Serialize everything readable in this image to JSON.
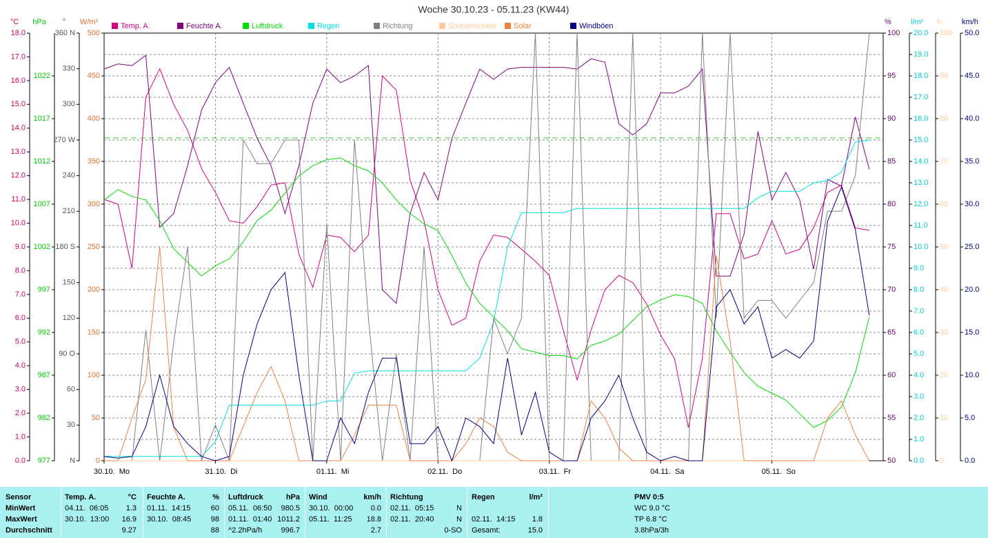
{
  "chart_data": {
    "type": "multi-axis-line",
    "title": "Woche 30.10.23 - 05.11.23 (KW44)",
    "categories": [
      "30.10.  Mo",
      null,
      null,
      null,
      null,
      null,
      null,
      null,
      "31.10.  Di",
      null,
      null,
      null,
      null,
      null,
      null,
      null,
      "01.11.  Mi",
      null,
      null,
      null,
      null,
      null,
      null,
      null,
      "02.11.  Do",
      null,
      null,
      null,
      null,
      null,
      null,
      null,
      "03.11.  Fr",
      null,
      null,
      null,
      null,
      null,
      null,
      null,
      "04.11.  Sa",
      null,
      null,
      null,
      null,
      null,
      null,
      null,
      "05.11.  So",
      null,
      null,
      null,
      null,
      null,
      null,
      null
    ],
    "grid": true,
    "axes": [
      {
        "unit": "°C",
        "side": "left",
        "color": "#cc0066",
        "ylim": [
          0,
          18
        ],
        "yticks": [
          {
            "value": 0,
            "label": "0.0"
          },
          {
            "value": 1,
            "label": "1.0"
          },
          {
            "value": 2,
            "label": "2.0"
          },
          {
            "value": 3,
            "label": "3.0"
          },
          {
            "value": 4,
            "label": "4.0"
          },
          {
            "value": 5,
            "label": "5.0"
          },
          {
            "value": 6,
            "label": "6.0"
          },
          {
            "value": 7,
            "label": "7.0"
          },
          {
            "value": 8,
            "label": "8.0"
          },
          {
            "value": 9,
            "label": "9.0"
          },
          {
            "value": 10,
            "label": "10.0"
          },
          {
            "value": 11,
            "label": "11.0"
          },
          {
            "value": 12,
            "label": "12.0"
          },
          {
            "value": 13,
            "label": "13.0"
          },
          {
            "value": 14,
            "label": "14.0"
          },
          {
            "value": 15,
            "label": "15.0"
          },
          {
            "value": 16,
            "label": "16.0"
          },
          {
            "value": 17,
            "label": "17.0"
          },
          {
            "value": 18,
            "label": "18.0"
          }
        ]
      },
      {
        "unit": "hPa",
        "side": "left",
        "color": "#00cc00",
        "ylim": [
          977,
          1027
        ],
        "yticks": [
          977,
          982,
          987,
          992,
          997,
          1002,
          1007,
          1012,
          1017,
          1022
        ]
      },
      {
        "unit": "°",
        "side": "left",
        "color": "#555555",
        "ylim": [
          0,
          360
        ],
        "yticks": [
          {
            "value": 0,
            "label": "N"
          },
          30,
          60,
          {
            "value": 90,
            "label": "90 O"
          },
          120,
          150,
          {
            "value": 180,
            "label": "180 S"
          },
          210,
          240,
          {
            "value": 270,
            "label": "270 W"
          },
          300,
          330,
          {
            "value": 360,
            "label": "360 N"
          }
        ]
      },
      {
        "unit": "W/m²",
        "side": "left",
        "color": "#e07030",
        "ylim": [
          0,
          500
        ],
        "yticks": [
          0,
          50,
          100,
          150,
          200,
          250,
          300,
          350,
          400,
          450,
          500
        ]
      },
      {
        "unit": "%",
        "side": "right",
        "color": "#660066",
        "ylim": [
          50,
          100
        ],
        "yticks": [
          50,
          55,
          60,
          65,
          70,
          75,
          80,
          85,
          90,
          95,
          100
        ]
      },
      {
        "unit": "l/m²",
        "side": "right",
        "color": "#00cccc",
        "grid": true,
        "ylim": [
          0,
          20
        ],
        "yticks": [
          {
            "value": 0,
            "label": "0.0"
          },
          {
            "value": 1,
            "label": "1.0"
          },
          {
            "value": 2,
            "label": "2.0"
          },
          {
            "value": 3,
            "label": "3.0"
          },
          {
            "value": 4,
            "label": "4.0"
          },
          {
            "value": 5,
            "label": "5.0"
          },
          {
            "value": 6,
            "label": "6.0"
          },
          {
            "value": 7,
            "label": "7.0"
          },
          {
            "value": 8,
            "label": "8.0"
          },
          {
            "value": 9,
            "label": "9.0"
          },
          {
            "value": 10,
            "label": "10.0"
          },
          {
            "value": 11,
            "label": "11.0"
          },
          {
            "value": 12,
            "label": "12.0"
          },
          {
            "value": 13,
            "label": "13.0"
          },
          {
            "value": 14,
            "label": "14.0"
          },
          {
            "value": 15,
            "label": "15.0"
          },
          {
            "value": 16,
            "label": "16.0"
          },
          {
            "value": 17,
            "label": "17.0"
          },
          {
            "value": 18,
            "label": "18.0"
          },
          {
            "value": 19,
            "label": "19.0"
          },
          {
            "value": 20,
            "label": "20.0"
          }
        ]
      },
      {
        "unit": "h",
        "side": "right",
        "color": "#ffcc99",
        "ylim": [
          0,
          100
        ],
        "yticks": [
          0,
          10,
          20,
          30,
          40,
          50,
          60,
          70,
          80,
          90,
          100
        ]
      },
      {
        "unit": "km/h",
        "side": "right",
        "color": "#000080",
        "ylim": [
          0,
          50
        ],
        "yticks": [
          {
            "value": 0,
            "label": "0.0"
          },
          {
            "value": 5,
            "label": "5.0"
          },
          {
            "value": 10,
            "label": "10.0"
          },
          {
            "value": 15,
            "label": "15.0"
          },
          {
            "value": 20,
            "label": "20.0"
          },
          {
            "value": 25,
            "label": "25.0"
          },
          {
            "value": 30,
            "label": "30.0"
          },
          {
            "value": 35,
            "label": "35.0"
          },
          {
            "value": 40,
            "label": "40.0"
          },
          {
            "value": 45,
            "label": "45.0"
          },
          {
            "value": 50,
            "label": "50.0"
          }
        ]
      }
    ],
    "series": [
      {
        "name": "Temp. A.",
        "color": "#d0007f",
        "axis": 0,
        "values": [
          11.0,
          10.8,
          8.1,
          15.3,
          16.5,
          15.0,
          13.9,
          12.3,
          11.3,
          10.1,
          10.0,
          10.7,
          11.6,
          11.7,
          8.7,
          7.3,
          9.5,
          9.4,
          8.8,
          9.5,
          16.2,
          15.6,
          11.8,
          10.1,
          7.2,
          5.7,
          6.0,
          8.4,
          9.5,
          9.4,
          8.9,
          8.4,
          7.8,
          5.5,
          3.4,
          5.5,
          7.2,
          7.8,
          7.5,
          6.6,
          5.3,
          4.3,
          1.4,
          4.3,
          10.4,
          10.4,
          8.5,
          8.7,
          10.1,
          8.7,
          8.9,
          9.8,
          11.3,
          11.6,
          9.8,
          9.7
        ]
      },
      {
        "name": "Feuchte A.",
        "color": "#800080",
        "axis": 4,
        "values": [
          95.8,
          96.4,
          96.2,
          97.4,
          77.3,
          78.9,
          84.5,
          91.0,
          94.2,
          96.0,
          91.8,
          87.7,
          84.5,
          78.9,
          84.5,
          91.8,
          95.8,
          94.2,
          95.0,
          96.2,
          70.0,
          68.4,
          78.9,
          83.7,
          80.5,
          87.7,
          91.8,
          95.8,
          94.6,
          95.8,
          96.0,
          96.0,
          96.0,
          96.0,
          95.8,
          97.0,
          96.6,
          89.4,
          88.1,
          89.4,
          93.0,
          93.0,
          93.8,
          95.8,
          71.6,
          71.6,
          76.5,
          88.5,
          80.5,
          83.7,
          80.5,
          72.4,
          82.9,
          82.1,
          90.2,
          84.1
        ]
      },
      {
        "name": "Luftdruck",
        "color": "#00dd00",
        "axis": 1,
        "values": [
          1007.5,
          1008.7,
          1007.9,
          1007.5,
          1005.1,
          1001.8,
          1000.2,
          998.6,
          999.8,
          1000.6,
          1002.6,
          1005.1,
          1006.3,
          1008.3,
          1010.3,
          1011.5,
          1012.2,
          1012.4,
          1011.5,
          1010.9,
          1009.5,
          1007.5,
          1005.9,
          1004.7,
          1003.9,
          1001.0,
          997.8,
          995.4,
          993.8,
          992.2,
          990.1,
          989.7,
          989.3,
          989.3,
          988.9,
          990.5,
          991.0,
          991.8,
          993.4,
          995.0,
          995.8,
          996.4,
          996.2,
          995.4,
          992.2,
          989.7,
          987.3,
          985.7,
          984.9,
          984.1,
          982.5,
          980.9,
          981.7,
          983.3,
          987.3,
          993.8
        ]
      },
      {
        "name": "Regen",
        "color": "#00e0e0",
        "axis": 5,
        "values": [
          0.2,
          0.2,
          0.2,
          0.2,
          0.2,
          0.2,
          0.2,
          0.2,
          0.9,
          2.6,
          2.6,
          2.6,
          2.6,
          2.6,
          2.6,
          2.6,
          2.8,
          2.8,
          4.1,
          4.2,
          4.2,
          4.2,
          4.2,
          4.2,
          4.2,
          4.2,
          4.2,
          4.8,
          6.5,
          10.0,
          11.6,
          11.6,
          11.6,
          11.6,
          11.8,
          11.8,
          11.8,
          11.8,
          11.8,
          11.8,
          11.8,
          11.8,
          11.8,
          11.8,
          11.8,
          11.8,
          11.8,
          12.3,
          12.6,
          12.6,
          12.6,
          13.0,
          13.1,
          13.5,
          14.9,
          15.0
        ]
      },
      {
        "name": "Richtung",
        "color": "#808080",
        "axis": 2,
        "values": [
          0,
          0,
          0,
          110,
          0,
          100,
          180,
          0,
          30,
          0,
          270,
          250,
          250,
          270,
          270,
          0,
          200,
          0,
          270,
          120,
          0,
          90,
          0,
          180,
          0,
          0,
          0,
          0,
          120,
          90,
          120,
          360,
          0,
          0,
          360,
          0,
          0,
          0,
          360,
          0,
          0,
          0,
          0,
          360,
          120,
          360,
          120,
          135,
          135,
          120,
          135,
          150,
          210,
          210,
          240,
          360
        ]
      },
      {
        "name": "Sonnenschein",
        "color": "#ffcc99",
        "axis": 6,
        "values": [
          0,
          0,
          0,
          0,
          0,
          0,
          0,
          0,
          0,
          0,
          0,
          0,
          0,
          0,
          0,
          0,
          0,
          0,
          0,
          0,
          0,
          0,
          0,
          0,
          0,
          0,
          0,
          0,
          0,
          0,
          0,
          0,
          0,
          0,
          0,
          0,
          0,
          0,
          0,
          0,
          0,
          0,
          0,
          0,
          0,
          0,
          0,
          0,
          0,
          0,
          0,
          0,
          0,
          0,
          0,
          0
        ]
      },
      {
        "name": "Solar",
        "color": "#f08040",
        "axis": 3,
        "values": [
          0,
          0,
          50,
          95,
          250,
          39,
          0,
          0,
          0,
          0,
          40,
          80,
          110,
          70,
          0,
          0,
          0,
          0,
          30,
          65,
          65,
          65,
          0,
          0,
          0,
          0,
          20,
          50,
          40,
          10,
          0,
          0,
          0,
          0,
          0,
          70,
          50,
          15,
          0,
          0,
          0,
          0,
          0,
          0,
          240,
          140,
          0,
          0,
          0,
          0,
          0,
          0,
          50,
          70,
          30,
          0
        ]
      },
      {
        "name": "Windböen",
        "color": "#000080",
        "axis": 7,
        "values": [
          0.5,
          0.3,
          0.5,
          4,
          10,
          4,
          2,
          0.5,
          0,
          0.5,
          10,
          16,
          20,
          22,
          10,
          0,
          0,
          5,
          2,
          8,
          12,
          12,
          2,
          2,
          4,
          0,
          5,
          4,
          2,
          12,
          3,
          8,
          1,
          0,
          0,
          5,
          7,
          10,
          5,
          1,
          0,
          0.5,
          0,
          0,
          18,
          20,
          16,
          18,
          12,
          13,
          12,
          14,
          28,
          32,
          27,
          17
        ]
      }
    ]
  },
  "table": {
    "row_labels_title": "Sensor",
    "row_labels": [
      "MinWert",
      "MaxWert",
      "Durchschnitt"
    ],
    "groups": [
      {
        "title": "Temp. A.",
        "unit": "°C",
        "rows": [
          [
            "04.11.  06:05",
            "1.3"
          ],
          [
            "30.10.  13:00",
            "16.9"
          ],
          [
            null,
            "9.27"
          ]
        ]
      },
      {
        "title": "Feuchte A.",
        "unit": "%",
        "rows": [
          [
            "01.11.  14:15",
            "60"
          ],
          [
            "30.10.  08:45",
            "98"
          ],
          [
            null,
            "88"
          ]
        ]
      },
      {
        "title": "Luftdruck",
        "unit": "hPa",
        "rows": [
          [
            "05.11.  06:50",
            "980.5"
          ],
          [
            "01.11.  01:40",
            "1011.2"
          ],
          [
            "^2.2hPa/h",
            "996.7"
          ]
        ]
      },
      {
        "title": "Wind",
        "unit": "km/h",
        "rows": [
          [
            "30.10.  00:00",
            "0.0"
          ],
          [
            "05.11.  11:25",
            "18.8"
          ],
          [
            null,
            "2.7"
          ]
        ]
      },
      {
        "title": "Richtung",
        "rows": [
          [
            "02.11.  05:15",
            "N"
          ],
          [
            "02.11.  20:40",
            "N"
          ],
          [
            null,
            "0-SO"
          ]
        ]
      },
      {
        "title": "Regen",
        "unit": "l/m²",
        "rows": [
          [
            null,
            null
          ],
          [
            "02.11.  14:15",
            "1.8"
          ],
          [
            "Gesamt:",
            "15.0"
          ]
        ]
      }
    ],
    "pmv": {
      "title": "PMV 0:5",
      "lines": [
        "WC 9.0 °C",
        "TP 6.8 °C",
        "3.8hPa/3h"
      ]
    }
  }
}
